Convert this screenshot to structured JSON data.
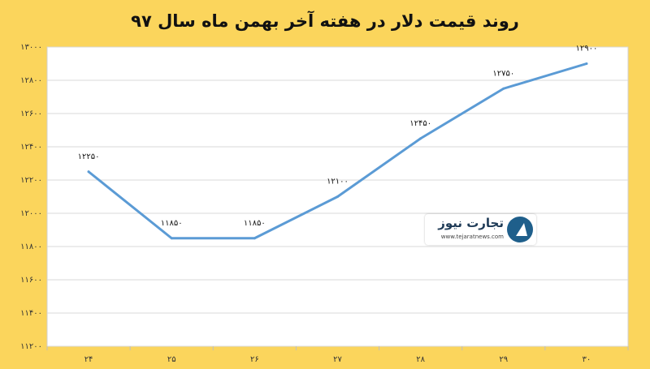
{
  "chart_data": {
    "type": "line",
    "title": "روند قیمت دلار در هفته آخر بهمن ماه سال ۹۷",
    "categories": [
      "۲۴",
      "۲۵",
      "۲۶",
      "۲۷",
      "۲۸",
      "۲۹",
      "۳۰"
    ],
    "values": [
      12250,
      11850,
      11850,
      12100,
      12450,
      12750,
      12900
    ],
    "data_labels": [
      "۱۲۲۵۰",
      "۱۱۸۵۰",
      "۱۱۸۵۰",
      "۱۲۱۰۰",
      "۱۲۴۵۰",
      "۱۲۷۵۰",
      "۱۲۹۰۰"
    ],
    "yticks": [
      11200,
      11400,
      11600,
      11800,
      12000,
      12200,
      12400,
      12600,
      12800,
      13000
    ],
    "ytick_labels": [
      "۱۱۲۰۰",
      "۱۱۴۰۰",
      "۱۱۶۰۰",
      "۱۱۸۰۰",
      "۱۲۰۰۰",
      "۱۲۲۰۰",
      "۱۲۴۰۰",
      "۱۲۶۰۰",
      "۱۲۸۰۰",
      "۱۳۰۰۰"
    ],
    "ylim": [
      11200,
      13000
    ],
    "grid": true,
    "line_color": "#5b9bd5",
    "background_color": "#fbd55c",
    "plot_background": "#ffffff"
  },
  "watermark": {
    "name": "تجارت نیوز",
    "url": "www.tejaratnews.com"
  }
}
